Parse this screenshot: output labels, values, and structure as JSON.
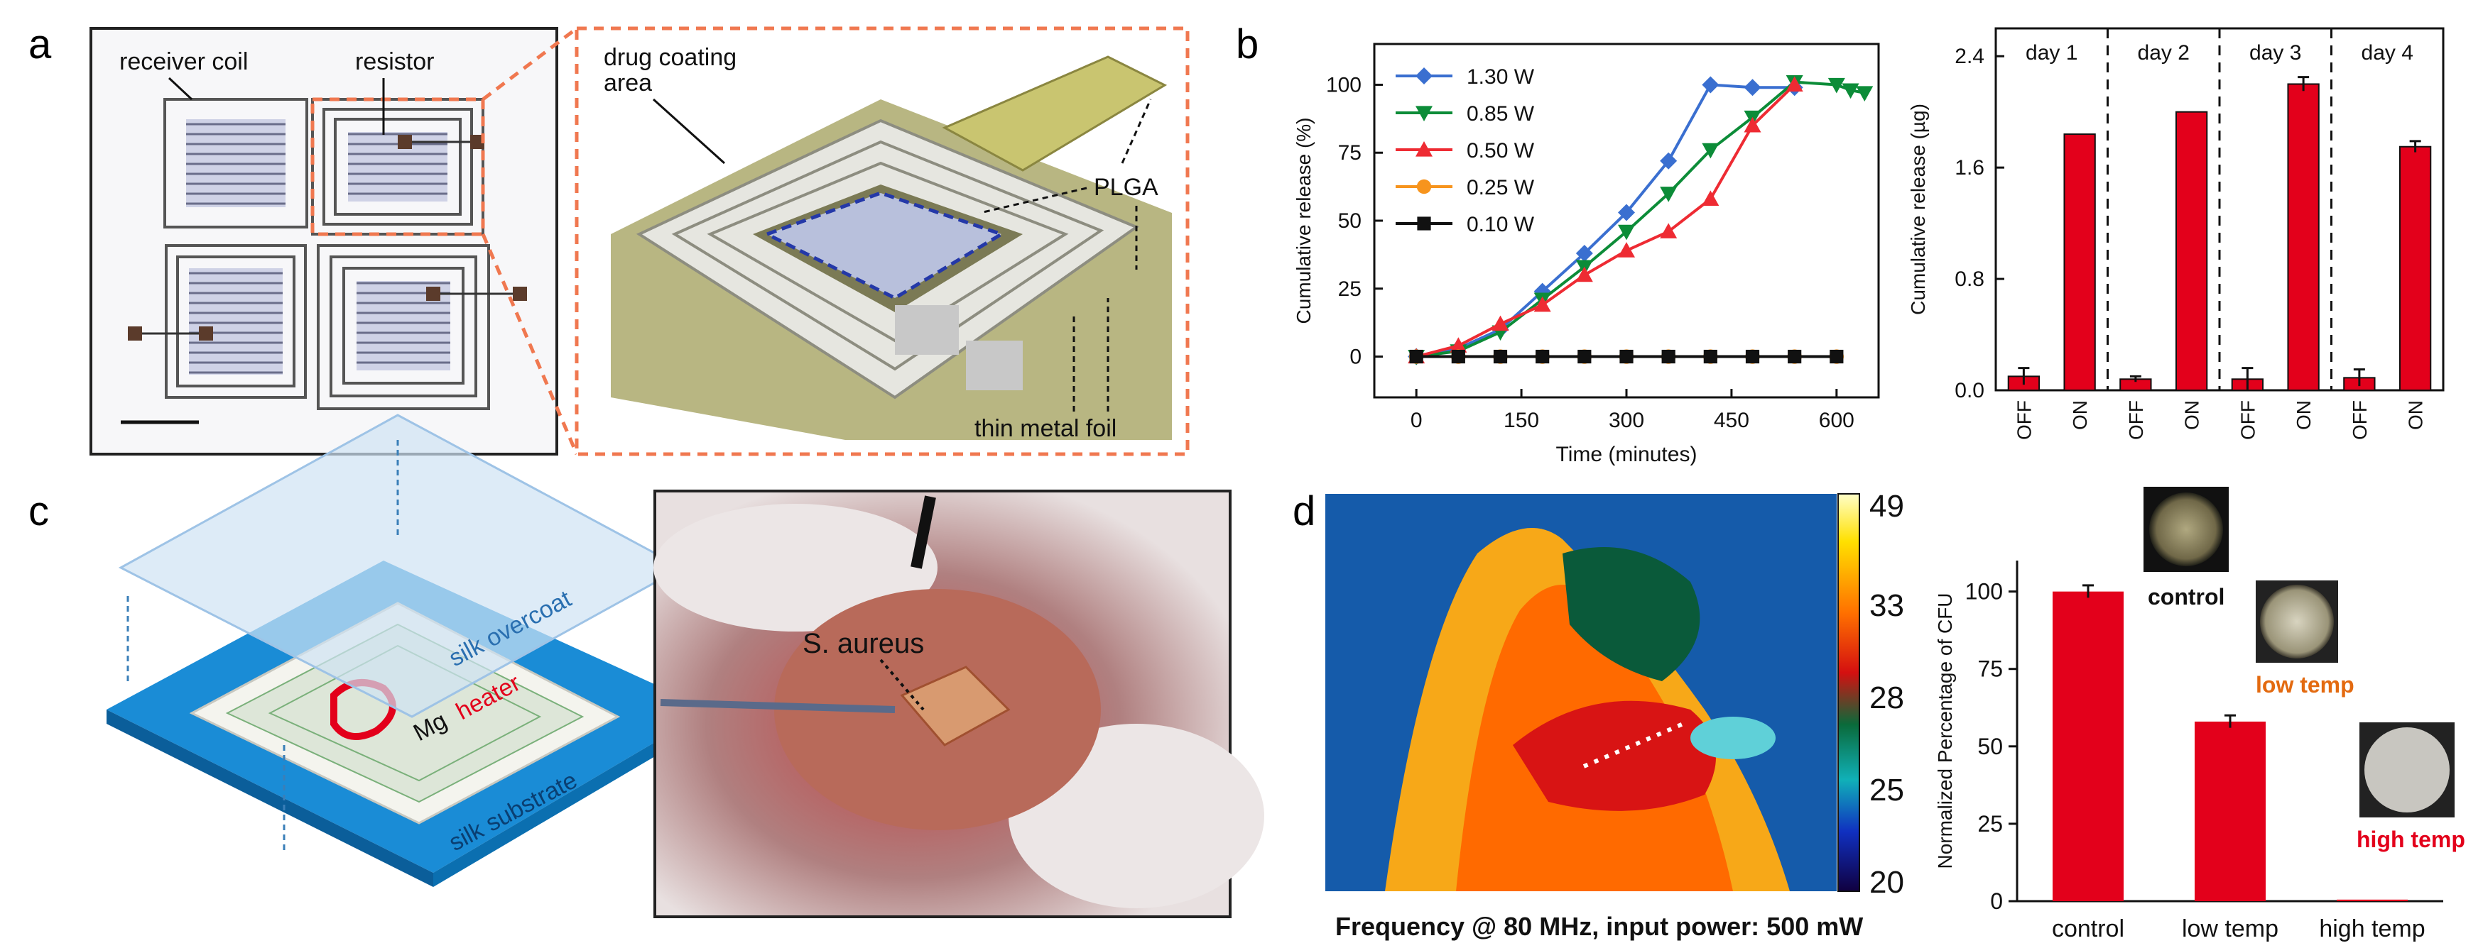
{
  "figure": {
    "panel_letters": [
      "a",
      "b",
      "c",
      "d"
    ],
    "panel_a": {
      "receiver_coil": "receiver coil",
      "resistor": "resistor",
      "drug_coating": "drug coating",
      "area": "area",
      "plga": "PLGA",
      "thin_metal_foil": "thin metal foil"
    },
    "panel_c": {
      "silk_overcoat": "silk overcoat",
      "mg": "Mg",
      "heater": "heater",
      "silk_substrate": "silk substrate",
      "s_aureus": "S. aureus"
    },
    "panel_d": {
      "caption": "Frequency @ 80 MHz, input power: 500 mW",
      "colorbar_ticks": [
        "49",
        "33",
        "28",
        "25",
        "20"
      ],
      "inset_labels": [
        "control",
        "low temp",
        "high temp"
      ]
    },
    "colors": {
      "accent_red": "#e3001b",
      "orange_dashed": "#f07850"
    }
  },
  "chart_data": [
    {
      "type": "line",
      "title": "",
      "xlabel": "Time (minutes)",
      "ylabel": "Cumulative release (%)",
      "xlim": [
        -60,
        660
      ],
      "ylim": [
        -15,
        115
      ],
      "xticks": [
        "0",
        "150",
        "300",
        "450",
        "600"
      ],
      "yticks": [
        "0",
        "25",
        "50",
        "75",
        "100"
      ],
      "series": [
        {
          "name": "1.30 W",
          "color": "#3a6fd0",
          "marker": "diamond",
          "x": [
            0,
            60,
            120,
            180,
            240,
            300,
            360,
            420,
            480,
            540
          ],
          "y": [
            0,
            3,
            10,
            24,
            38,
            53,
            72,
            100,
            99,
            99
          ]
        },
        {
          "name": "0.85 W",
          "color": "#0c8c38",
          "marker": "triangle-down",
          "x": [
            0,
            60,
            120,
            180,
            240,
            300,
            360,
            420,
            480,
            540,
            600,
            620,
            640
          ],
          "y": [
            0,
            2,
            9,
            21,
            33,
            46,
            60,
            76,
            88,
            101,
            100,
            98,
            97
          ]
        },
        {
          "name": "0.50 W",
          "color": "#ee2b33",
          "marker": "triangle-up",
          "x": [
            0,
            60,
            120,
            180,
            240,
            300,
            360,
            420,
            480,
            540
          ],
          "y": [
            0,
            4,
            12,
            19,
            30,
            39,
            46,
            58,
            85,
            100
          ]
        },
        {
          "name": "0.25 W",
          "color": "#f7941d",
          "marker": "circle",
          "x": [
            0,
            60,
            120,
            180,
            240,
            300,
            360,
            420,
            480,
            540,
            600
          ],
          "y": [
            0,
            0,
            0,
            0,
            0,
            0,
            0,
            0,
            0,
            0,
            0
          ]
        },
        {
          "name": "0.10 W",
          "color": "#111111",
          "marker": "square",
          "x": [
            0,
            60,
            120,
            180,
            240,
            300,
            360,
            420,
            480,
            540,
            600
          ],
          "y": [
            0,
            0,
            0,
            0,
            0,
            0,
            0,
            0,
            0,
            0,
            0
          ]
        }
      ],
      "legend": "top-left"
    },
    {
      "type": "bar",
      "ylabel": "Cumulative release (µg)",
      "ylim": [
        0,
        2.6
      ],
      "yticks": [
        "0.0",
        "0.8",
        "1.6",
        "2.4"
      ],
      "groups": [
        "day 1",
        "day 2",
        "day 3",
        "day 4"
      ],
      "categories": [
        "OFF",
        "ON",
        "OFF",
        "ON",
        "OFF",
        "ON",
        "OFF",
        "ON"
      ],
      "values": [
        0.1,
        1.84,
        0.08,
        2.0,
        0.08,
        2.2,
        0.09,
        1.75
      ],
      "errors": [
        0.06,
        0.0,
        0.02,
        0.0,
        0.08,
        0.05,
        0.06,
        0.04
      ],
      "color": "#e3001b"
    },
    {
      "type": "bar",
      "ylabel": "Normalized Percentage of CFU",
      "ylim": [
        0,
        110
      ],
      "yticks": [
        "0",
        "25",
        "50",
        "75",
        "100"
      ],
      "categories": [
        "control",
        "low temp",
        "high temp"
      ],
      "values": [
        100,
        58,
        0.5
      ],
      "errors": [
        2,
        2,
        0
      ],
      "color": "#e3001b"
    }
  ]
}
